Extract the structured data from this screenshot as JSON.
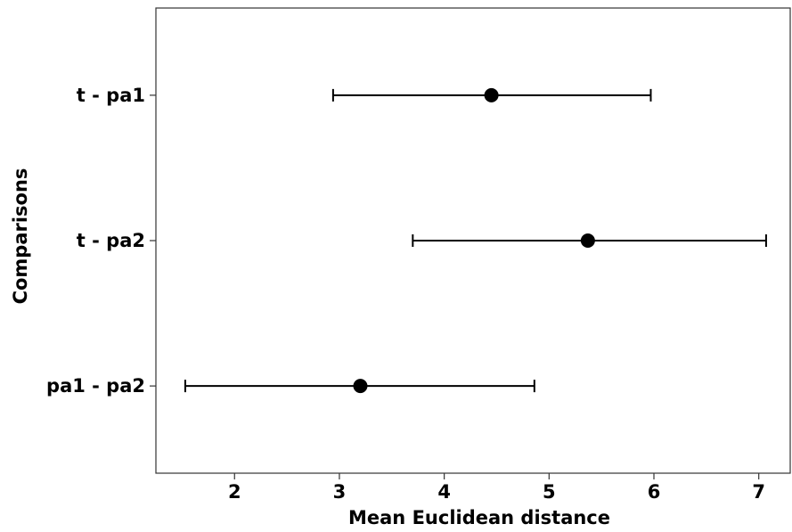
{
  "chart_data": {
    "type": "scatter",
    "subtype": "point-with-error-bars",
    "orientation": "horizontal",
    "xlabel": "Mean Euclidean distance",
    "ylabel": "Comparisons",
    "xlim": [
      1.25,
      7.3
    ],
    "x_ticks": [
      "2",
      "3",
      "4",
      "5",
      "6",
      "7"
    ],
    "grid": false,
    "legend": "none",
    "categories": [
      "t - pa1",
      "t - pa2",
      "pa1 - pa2"
    ],
    "points": [
      {
        "label": "t - pa1",
        "mean": 4.45,
        "lower": 2.94,
        "upper": 5.97
      },
      {
        "label": "t - pa2",
        "mean": 5.37,
        "lower": 3.7,
        "upper": 7.07
      },
      {
        "label": "pa1 - pa2",
        "mean": 3.2,
        "lower": 1.53,
        "upper": 4.86
      }
    ],
    "point_color": "#000000"
  }
}
